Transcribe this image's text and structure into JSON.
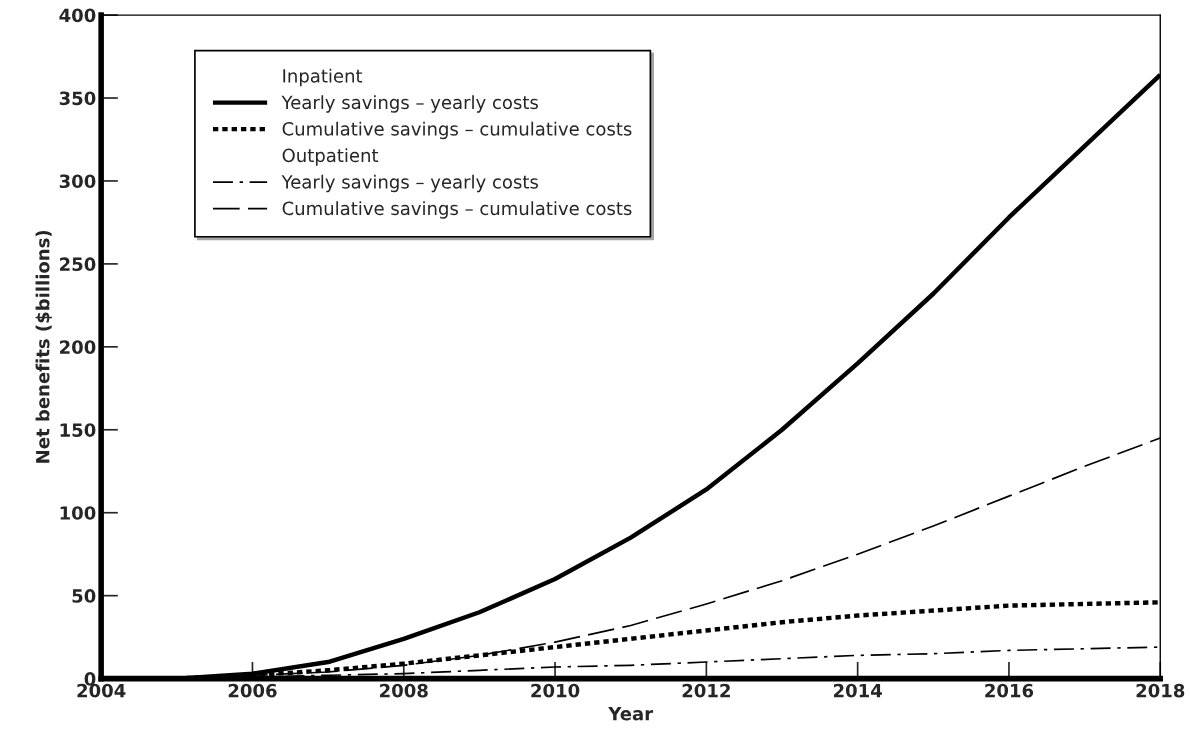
{
  "chart_data": {
    "type": "line",
    "xlabel": "Year",
    "ylabel": "Net benefits ($billions)",
    "x": [
      2004,
      2005,
      2006,
      2007,
      2008,
      2009,
      2010,
      2011,
      2012,
      2013,
      2014,
      2015,
      2016,
      2017,
      2018
    ],
    "series": [
      {
        "name": "Yearly savings – yearly costs",
        "color": "#000000",
        "line_style": "solid",
        "values": [
          0,
          0,
          3,
          10,
          24,
          40,
          60,
          85,
          114,
          150,
          190,
          232,
          278,
          321,
          364
        ]
      },
      {
        "name": "Cumulative savings – cumulative costs",
        "color": "#000000",
        "line_style": "dotted",
        "values": [
          0,
          0,
          2,
          5,
          9,
          14,
          19,
          24,
          29,
          34,
          38,
          41,
          44,
          45,
          46
        ]
      },
      {
        "name": "Yearly savings – yearly costs",
        "color": "#000000",
        "line_style": "dashdot",
        "values": [
          0,
          0,
          1,
          2,
          3,
          5,
          7,
          8,
          10,
          12,
          14,
          15,
          17,
          18,
          19
        ]
      },
      {
        "name": "Cumulative savings – cumulative costs",
        "color": "#000000",
        "line_style": "dashed",
        "values": [
          0,
          0,
          2,
          4,
          8,
          14,
          22,
          32,
          45,
          59,
          75,
          92,
          110,
          128,
          145
        ]
      }
    ],
    "annotations": [
      "Inpatient",
      "Outpatient"
    ],
    "xlim": [
      2004,
      2018
    ],
    "xticks": [
      2004,
      2006,
      2008,
      2010,
      2012,
      2014,
      2016,
      2018
    ],
    "ylim": [
      0,
      400
    ],
    "yticks": [
      0,
      50,
      100,
      150,
      200,
      250,
      300,
      350,
      400
    ],
    "grid": false,
    "legend": "top left"
  }
}
